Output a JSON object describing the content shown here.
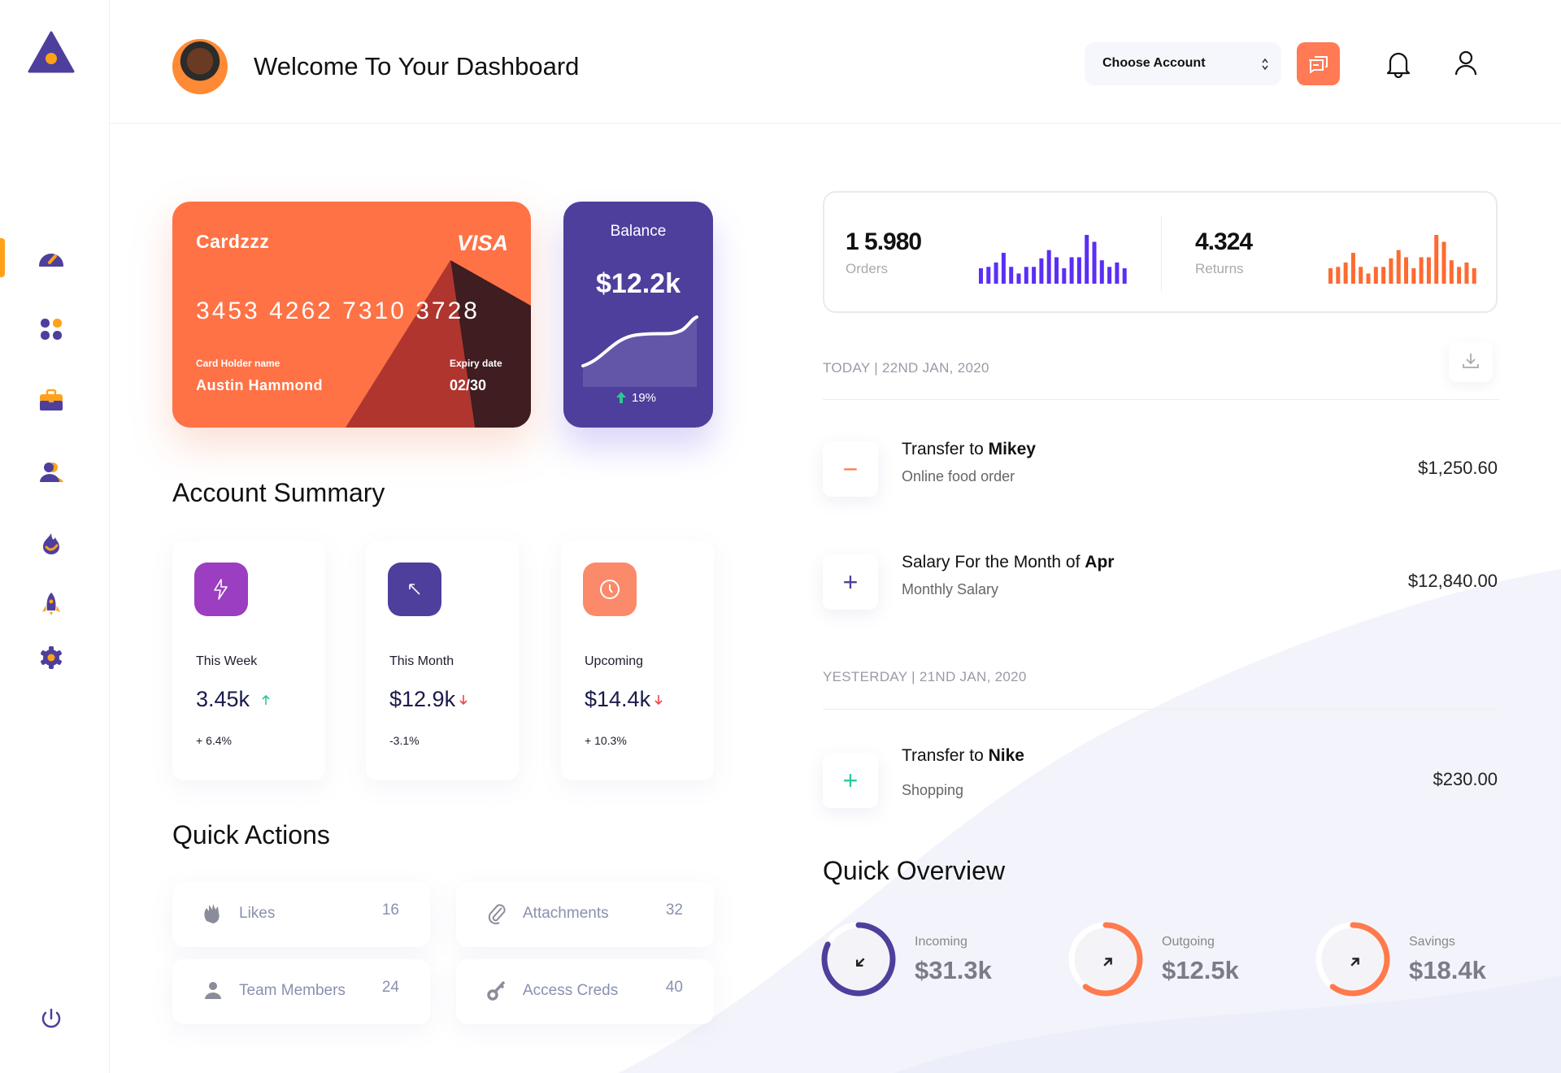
{
  "header": {
    "title": "Welcome To Your Dashboard",
    "account_select": "Choose Account"
  },
  "sidebar": {
    "items": [
      {
        "icon": "speedometer-icon",
        "active": true
      },
      {
        "icon": "apps-grid-icon"
      },
      {
        "icon": "briefcase-icon"
      },
      {
        "icon": "users-icon"
      },
      {
        "icon": "fire-icon"
      },
      {
        "icon": "rocket-icon"
      },
      {
        "icon": "settings-gear-icon"
      }
    ],
    "logout_icon": "power-icon"
  },
  "card": {
    "brand": "Cardzzz",
    "network": "VISA",
    "number": "3453 4262 7310 3728",
    "holder_label": "Card Holder name",
    "holder": "Austin Hammond",
    "expiry_label": "Expiry date",
    "expiry": "02/30",
    "color": "#ff7245"
  },
  "balance": {
    "label": "Balance",
    "value": "$12.2k",
    "change": "19%",
    "color": "#4e3f9d"
  },
  "account_summary": {
    "title": "Account Summary",
    "items": [
      {
        "label": "This Week",
        "value": "3.45k",
        "trend": "up",
        "pct": "+ 6.4%",
        "icon": "lightning-icon",
        "color": "#9b3ec1"
      },
      {
        "label": "This Month",
        "value": "$12.9k",
        "trend": "down",
        "pct": "-3.1%",
        "icon": "arrow-up-left-icon",
        "color": "#4e3f9d"
      },
      {
        "label": "Upcoming",
        "value": "$14.4k",
        "trend": "down",
        "pct": "+ 10.3%",
        "icon": "clock-icon",
        "color": "#fb8a6a"
      }
    ]
  },
  "quick_actions": {
    "title": "Quick Actions",
    "items": [
      {
        "label": "Likes",
        "count": "16",
        "icon": "clap-hands-icon"
      },
      {
        "label": "Attachments",
        "count": "32",
        "icon": "paperclip-icon"
      },
      {
        "label": "Team Members",
        "count": "24",
        "icon": "person-icon"
      },
      {
        "label": "Access Creds",
        "count": "40",
        "icon": "key-icon"
      }
    ]
  },
  "stats": {
    "orders": {
      "value": "1 5.980",
      "label": "Orders",
      "color": "#5b2ef6",
      "bars": [
        56,
        61,
        77,
        112,
        61,
        37,
        61,
        61,
        92,
        122,
        96,
        56,
        96,
        96,
        177,
        152,
        85,
        61,
        77,
        56
      ]
    },
    "returns": {
      "value": "4.324",
      "label": "Returns",
      "color": "#ff6a30",
      "bars": [
        56,
        61,
        77,
        112,
        61,
        37,
        61,
        61,
        92,
        122,
        96,
        56,
        96,
        96,
        177,
        152,
        85,
        61,
        77,
        56
      ]
    }
  },
  "transactions": {
    "groups": [
      {
        "date": "TODAY | 22ND JAN, 2020",
        "items": [
          {
            "title_prefix": "Transfer to ",
            "title_bold": "Mikey",
            "subtitle": "Online food order",
            "amount": "$1,250.60",
            "sign": "−",
            "sign_color": "#ff7a55"
          },
          {
            "title_prefix": "Salary For the Month of ",
            "title_bold": "Apr",
            "subtitle": "Monthly Salary",
            "amount": "$12,840.00",
            "sign": "+",
            "sign_color": "#4e3f9d"
          }
        ]
      },
      {
        "date": "YESTERDAY | 21ND JAN, 2020",
        "items": [
          {
            "title_prefix": "Transfer to ",
            "title_bold": "Nike",
            "subtitle": "Shopping",
            "amount": "$230.00",
            "sign": "+",
            "sign_color": "#2ec9a0"
          }
        ]
      }
    ]
  },
  "quick_overview": {
    "title": "Quick Overview",
    "items": [
      {
        "label": "Incoming",
        "value": "$31.3k",
        "progress": 0.82,
        "color": "#4e3f9d",
        "icon": "arrow-down-left-icon"
      },
      {
        "label": "Outgoing",
        "value": "$12.5k",
        "progress": 0.6,
        "color": "#ff7a4d",
        "icon": "arrow-up-right-icon"
      },
      {
        "label": "Savings",
        "value": "$18.4k",
        "progress": 0.6,
        "color": "#ff7a4d",
        "icon": "arrow-up-right-icon"
      }
    ]
  }
}
